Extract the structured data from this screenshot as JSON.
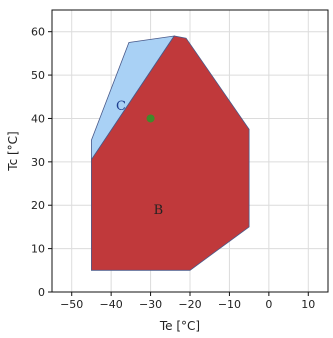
{
  "chart_data": {
    "type": "area",
    "xlabel": "Te [°C]",
    "ylabel": "Tc [°C]",
    "xlim": [
      -55,
      15
    ],
    "ylim": [
      0,
      65
    ],
    "xticks": [
      -50,
      -40,
      -30,
      -20,
      -10,
      0,
      10
    ],
    "yticks": [
      0,
      10,
      20,
      30,
      40,
      50,
      60
    ],
    "xtick_labels": [
      "−50",
      "−40",
      "−30",
      "−20",
      "−10",
      "0",
      "10"
    ],
    "ytick_labels": [
      "0",
      "10",
      "20",
      "30",
      "40",
      "50",
      "60"
    ],
    "grid": true,
    "regions": [
      {
        "label": "C",
        "color": "#a9d1f5",
        "label_color": "#1f3f8f",
        "label_at": [
          -37.5,
          42
        ],
        "polygon": [
          [
            -45,
            35
          ],
          [
            -35.5,
            57.5
          ],
          [
            -24,
            59
          ],
          [
            -45,
            30.5
          ]
        ]
      },
      {
        "label": "B",
        "color": "#c0393b",
        "label_color": "#222222",
        "label_at": [
          -28,
          18
        ],
        "polygon": [
          [
            -45,
            30.5
          ],
          [
            -24,
            59
          ],
          [
            -21,
            58.5
          ],
          [
            -5,
            37.5
          ],
          [
            -5,
            15
          ],
          [
            -20,
            5
          ],
          [
            -45,
            5
          ]
        ]
      }
    ],
    "points": [
      {
        "x": -30,
        "y": 40,
        "color": "#3f8a2a"
      }
    ]
  }
}
